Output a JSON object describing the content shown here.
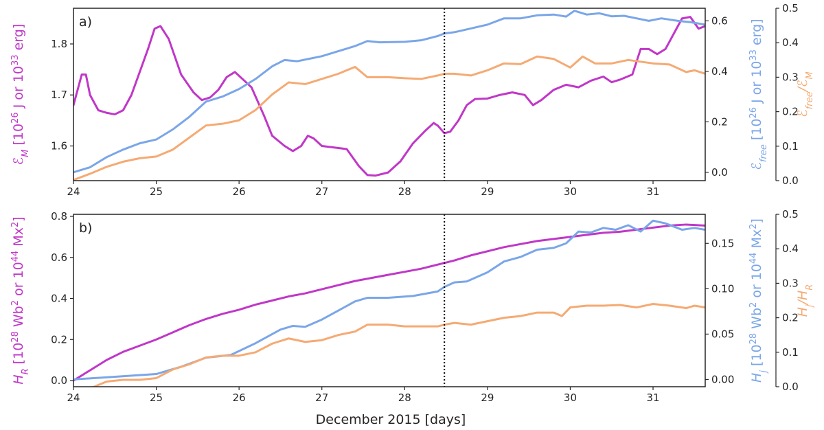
{
  "chart_data": [
    {
      "type": "line",
      "panel_label": "a)",
      "xlabel": "",
      "xlim": [
        24.0,
        31.63
      ],
      "xticks": [
        24,
        25,
        26,
        27,
        28,
        29,
        30,
        31
      ],
      "vline_x": 28.48,
      "grid": false,
      "axes": [
        {
          "side": "left",
          "label_parts": [
            {
              "t": "ℰ",
              "s": "i"
            },
            {
              "t": "M",
              "s": "sub-i"
            },
            {
              "t": " [10"
            },
            {
              "t": "26",
              "s": "sup"
            },
            {
              "t": " J or 10"
            },
            {
              "t": "33",
              "s": "sup"
            },
            {
              "t": " erg]"
            }
          ],
          "ylim": [
            1.532,
            1.87
          ],
          "ticks": [
            1.6,
            1.7,
            1.8
          ],
          "tick_labels": [
            "1.6",
            "1.7",
            "1.8"
          ],
          "color": "#c037c8"
        },
        {
          "side": "right",
          "label_parts": [
            {
              "t": "ℰ",
              "s": "i"
            },
            {
              "t": "free",
              "s": "sub-i"
            },
            {
              "t": " [10"
            },
            {
              "t": "26",
              "s": "sup"
            },
            {
              "t": " J or 10"
            },
            {
              "t": "33",
              "s": "sup"
            },
            {
              "t": " erg]"
            }
          ],
          "ylim": [
            -0.033,
            0.65
          ],
          "ticks": [
            0.0,
            0.2,
            0.4,
            0.6
          ],
          "tick_labels": [
            "0.0",
            "0.2",
            "0.4",
            "0.6"
          ],
          "color": "#7aa6e8"
        },
        {
          "side": "right-outer",
          "label_parts": [
            {
              "t": "ℰ",
              "s": "i"
            },
            {
              "t": "free",
              "s": "sub-i"
            },
            {
              "t": "/ℰ",
              "s": "i"
            },
            {
              "t": "M",
              "s": "sub-i"
            }
          ],
          "ylim": [
            0.0,
            0.5
          ],
          "ticks": [
            0.0,
            0.1,
            0.2,
            0.3,
            0.4,
            0.5
          ],
          "tick_labels": [
            "0.0",
            "0.1",
            "0.2",
            "0.3",
            "0.4",
            "0.5"
          ],
          "color": "#f5aa73"
        }
      ],
      "series": [
        {
          "axis": 0,
          "color": "#c037c8",
          "x": [
            24.0,
            24.1,
            24.15,
            24.2,
            24.3,
            24.4,
            24.5,
            24.6,
            24.7,
            24.8,
            24.9,
            24.98,
            25.05,
            25.15,
            25.3,
            25.45,
            25.55,
            25.65,
            25.75,
            25.85,
            25.95,
            26.05,
            26.15,
            26.3,
            26.4,
            26.55,
            26.65,
            26.75,
            26.83,
            26.9,
            27.0,
            27.15,
            27.3,
            27.45,
            27.55,
            27.65,
            27.8,
            27.95,
            28.1,
            28.25,
            28.35,
            28.4,
            28.48,
            28.55,
            28.65,
            28.75,
            28.85,
            29.0,
            29.15,
            29.3,
            29.45,
            29.55,
            29.65,
            29.8,
            29.95,
            30.1,
            30.25,
            30.4,
            30.5,
            30.6,
            30.75,
            30.85,
            30.95,
            31.05,
            31.15,
            31.25,
            31.35,
            31.45,
            31.55,
            31.63
          ],
          "y": [
            1.68,
            1.74,
            1.74,
            1.7,
            1.67,
            1.665,
            1.662,
            1.67,
            1.7,
            1.745,
            1.79,
            1.83,
            1.835,
            1.81,
            1.74,
            1.705,
            1.69,
            1.695,
            1.71,
            1.735,
            1.745,
            1.73,
            1.715,
            1.66,
            1.62,
            1.6,
            1.59,
            1.6,
            1.62,
            1.615,
            1.6,
            1.597,
            1.594,
            1.56,
            1.543,
            1.542,
            1.548,
            1.57,
            1.605,
            1.63,
            1.645,
            1.64,
            1.625,
            1.628,
            1.65,
            1.68,
            1.692,
            1.693,
            1.7,
            1.705,
            1.7,
            1.68,
            1.69,
            1.71,
            1.72,
            1.715,
            1.728,
            1.736,
            1.725,
            1.73,
            1.74,
            1.79,
            1.79,
            1.78,
            1.79,
            1.82,
            1.85,
            1.853,
            1.83,
            1.835
          ]
        },
        {
          "axis": 1,
          "color": "#7aa6e8",
          "x": [
            24.0,
            24.2,
            24.4,
            24.6,
            24.8,
            25.0,
            25.2,
            25.4,
            25.6,
            25.8,
            26.0,
            26.2,
            26.4,
            26.55,
            26.7,
            26.85,
            27.0,
            27.2,
            27.4,
            27.55,
            27.7,
            28.0,
            28.2,
            28.4,
            28.48,
            28.6,
            28.8,
            29.0,
            29.2,
            29.4,
            29.6,
            29.8,
            29.95,
            30.05,
            30.2,
            30.35,
            30.5,
            30.65,
            30.8,
            30.95,
            31.1,
            31.3,
            31.45,
            31.63
          ],
          "y": [
            0.0,
            0.02,
            0.06,
            0.09,
            0.115,
            0.13,
            0.17,
            0.22,
            0.28,
            0.3,
            0.33,
            0.37,
            0.42,
            0.445,
            0.44,
            0.45,
            0.46,
            0.48,
            0.5,
            0.52,
            0.515,
            0.517,
            0.523,
            0.54,
            0.55,
            0.555,
            0.57,
            0.585,
            0.61,
            0.61,
            0.622,
            0.625,
            0.617,
            0.64,
            0.625,
            0.63,
            0.618,
            0.62,
            0.61,
            0.6,
            0.61,
            0.6,
            0.595,
            0.585
          ]
        },
        {
          "axis": 2,
          "color": "#f5aa73",
          "x": [
            24.0,
            24.2,
            24.4,
            24.6,
            24.8,
            25.0,
            25.2,
            25.4,
            25.6,
            25.8,
            26.0,
            26.2,
            26.4,
            26.6,
            26.8,
            27.0,
            27.2,
            27.4,
            27.55,
            27.8,
            28.0,
            28.2,
            28.4,
            28.48,
            28.6,
            28.8,
            29.0,
            29.2,
            29.4,
            29.6,
            29.8,
            30.0,
            30.15,
            30.3,
            30.5,
            30.7,
            30.85,
            31.0,
            31.2,
            31.4,
            31.5,
            31.63
          ],
          "y": [
            0.002,
            0.02,
            0.04,
            0.055,
            0.065,
            0.07,
            0.09,
            0.125,
            0.16,
            0.165,
            0.175,
            0.205,
            0.25,
            0.285,
            0.28,
            0.295,
            0.31,
            0.33,
            0.3,
            0.3,
            0.297,
            0.295,
            0.305,
            0.31,
            0.31,
            0.305,
            0.32,
            0.34,
            0.338,
            0.36,
            0.353,
            0.328,
            0.36,
            0.34,
            0.34,
            0.35,
            0.345,
            0.34,
            0.337,
            0.315,
            0.32,
            0.31
          ]
        }
      ]
    },
    {
      "type": "line",
      "panel_label": "b)",
      "xlabel": "December 2015 [days]",
      "xlim": [
        24.0,
        31.63
      ],
      "xticks": [
        24,
        25,
        26,
        27,
        28,
        29,
        30,
        31
      ],
      "vline_x": 28.48,
      "grid": false,
      "axes": [
        {
          "side": "left",
          "label_parts": [
            {
              "t": "H",
              "s": "i"
            },
            {
              "t": "R",
              "s": "sub-i"
            },
            {
              "t": " [10"
            },
            {
              "t": "28",
              "s": "sup"
            },
            {
              "t": " Wb"
            },
            {
              "t": "2",
              "s": "sup"
            },
            {
              "t": " or 10"
            },
            {
              "t": "44",
              "s": "sup"
            },
            {
              "t": " Mx"
            },
            {
              "t": "2",
              "s": "sup"
            },
            {
              "t": "]"
            }
          ],
          "ylim": [
            -0.03,
            0.81
          ],
          "ticks": [
            0.0,
            0.2,
            0.4,
            0.6,
            0.8
          ],
          "tick_labels": [
            "0.0",
            "0.2",
            "0.4",
            "0.6",
            "0.8"
          ],
          "color": "#c037c8"
        },
        {
          "side": "right",
          "label_parts": [
            {
              "t": "H",
              "s": "i"
            },
            {
              "t": "j",
              "s": "sub-i"
            },
            {
              "t": " [10"
            },
            {
              "t": "28",
              "s": "sup"
            },
            {
              "t": " Wb"
            },
            {
              "t": "2",
              "s": "sup"
            },
            {
              "t": " or 10"
            },
            {
              "t": "44",
              "s": "sup"
            },
            {
              "t": " Mx"
            },
            {
              "t": "2",
              "s": "sup"
            },
            {
              "t": "]"
            }
          ],
          "ylim": [
            -0.008,
            0.182
          ],
          "ticks": [
            0.0,
            0.05,
            0.1,
            0.15
          ],
          "tick_labels": [
            "0.00",
            "0.05",
            "0.10",
            "0.15"
          ],
          "color": "#7aa6e8"
        },
        {
          "side": "right-outer",
          "label_parts": [
            {
              "t": "H",
              "s": "i"
            },
            {
              "t": "j",
              "s": "sub-i"
            },
            {
              "t": "/H",
              "s": "i"
            },
            {
              "t": "R",
              "s": "sub-i"
            }
          ],
          "ylim": [
            0.0,
            0.5
          ],
          "ticks": [
            0.0,
            0.1,
            0.2,
            0.3,
            0.4,
            0.5
          ],
          "tick_labels": [
            "0.0",
            "0.1",
            "0.2",
            "0.3",
            "0.4",
            "0.5"
          ],
          "color": "#f5aa73"
        }
      ],
      "series": [
        {
          "axis": 0,
          "color": "#c037c8",
          "x": [
            24.0,
            24.2,
            24.4,
            24.6,
            24.8,
            25.0,
            25.2,
            25.4,
            25.6,
            25.8,
            26.0,
            26.2,
            26.4,
            26.6,
            26.8,
            27.0,
            27.2,
            27.4,
            27.6,
            27.8,
            28.0,
            28.2,
            28.4,
            28.6,
            28.8,
            29.0,
            29.2,
            29.4,
            29.6,
            29.8,
            30.0,
            30.2,
            30.4,
            30.6,
            30.8,
            31.0,
            31.2,
            31.4,
            31.63
          ],
          "y": [
            0.0,
            0.05,
            0.1,
            0.14,
            0.17,
            0.2,
            0.235,
            0.27,
            0.3,
            0.325,
            0.345,
            0.37,
            0.39,
            0.41,
            0.425,
            0.445,
            0.465,
            0.485,
            0.5,
            0.515,
            0.53,
            0.545,
            0.565,
            0.585,
            0.61,
            0.63,
            0.65,
            0.665,
            0.68,
            0.69,
            0.7,
            0.71,
            0.72,
            0.725,
            0.735,
            0.745,
            0.755,
            0.76,
            0.755
          ]
        },
        {
          "axis": 1,
          "color": "#7aa6e8",
          "x": [
            24.0,
            24.5,
            25.0,
            25.3,
            25.6,
            25.9,
            26.2,
            26.5,
            26.65,
            26.8,
            27.0,
            27.2,
            27.4,
            27.55,
            27.8,
            28.1,
            28.4,
            28.48,
            28.6,
            28.75,
            29.0,
            29.2,
            29.4,
            29.6,
            29.8,
            29.95,
            30.1,
            30.25,
            30.4,
            30.55,
            30.7,
            30.85,
            31.0,
            31.15,
            31.35,
            31.5,
            31.63
          ],
          "y": [
            0.0,
            0.003,
            0.006,
            0.014,
            0.024,
            0.027,
            0.04,
            0.055,
            0.059,
            0.058,
            0.066,
            0.076,
            0.086,
            0.09,
            0.09,
            0.092,
            0.097,
            0.102,
            0.107,
            0.108,
            0.118,
            0.13,
            0.135,
            0.143,
            0.145,
            0.15,
            0.163,
            0.162,
            0.167,
            0.165,
            0.17,
            0.163,
            0.175,
            0.172,
            0.165,
            0.167,
            0.165
          ]
        },
        {
          "axis": 2,
          "color": "#f5aa73",
          "x": [
            24.0,
            24.2,
            24.4,
            24.6,
            24.8,
            25.0,
            25.2,
            25.4,
            25.6,
            25.8,
            26.0,
            26.2,
            26.4,
            26.6,
            26.8,
            27.0,
            27.2,
            27.4,
            27.55,
            27.8,
            28.0,
            28.2,
            28.4,
            28.48,
            28.6,
            28.8,
            29.0,
            29.2,
            29.4,
            29.6,
            29.8,
            29.9,
            30.0,
            30.2,
            30.4,
            30.6,
            30.8,
            31.0,
            31.2,
            31.4,
            31.5,
            31.63
          ],
          "y": [
            -0.015,
            -0.005,
            0.015,
            0.02,
            0.02,
            0.025,
            0.05,
            0.065,
            0.085,
            0.09,
            0.09,
            0.1,
            0.125,
            0.14,
            0.13,
            0.135,
            0.15,
            0.16,
            0.18,
            0.18,
            0.175,
            0.175,
            0.175,
            0.18,
            0.185,
            0.18,
            0.19,
            0.2,
            0.205,
            0.215,
            0.215,
            0.205,
            0.23,
            0.235,
            0.235,
            0.237,
            0.23,
            0.24,
            0.235,
            0.228,
            0.235,
            0.23
          ]
        }
      ]
    }
  ]
}
